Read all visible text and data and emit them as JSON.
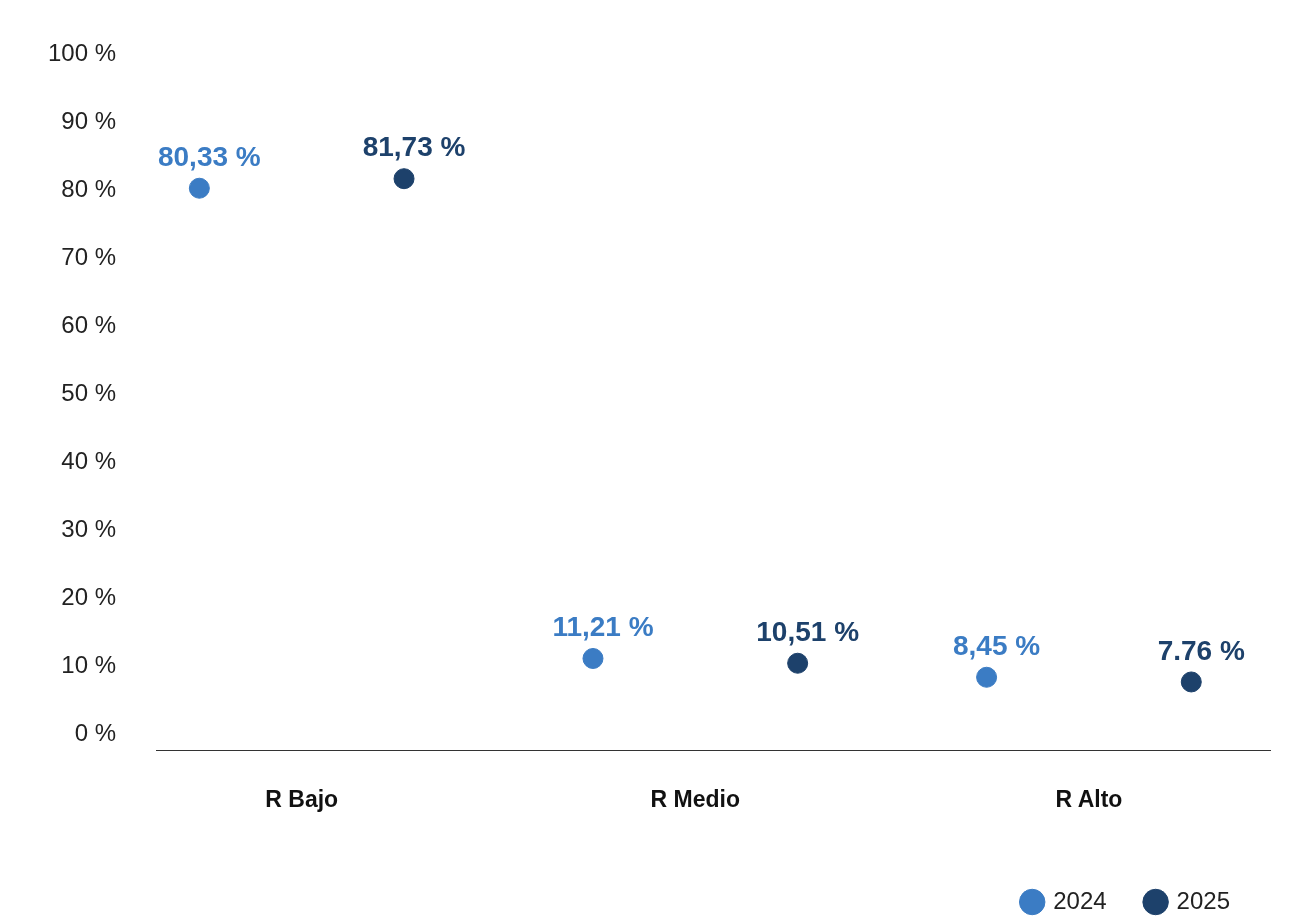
{
  "chart_data": {
    "type": "scatter",
    "categories": [
      "R Bajo",
      "R Medio",
      "R Alto"
    ],
    "series": [
      {
        "name": "2024",
        "color": "#3b7cc4",
        "values": [
          80.33,
          11.21,
          8.45
        ],
        "value_labels": [
          "80,33 %",
          "11,21 %",
          "8,45 %"
        ]
      },
      {
        "name": "2025",
        "color": "#1d416b",
        "values": [
          81.73,
          10.51,
          7.76
        ],
        "value_labels": [
          "81,73 %",
          "10,51 %",
          "7.76 %"
        ]
      }
    ],
    "ylim": [
      -2.3,
      100
    ],
    "yticks": [
      {
        "value": 0,
        "label": "0 %"
      },
      {
        "value": 10,
        "label": "10 %"
      },
      {
        "value": 20,
        "label": "20 %"
      },
      {
        "value": 30,
        "label": "30 %"
      },
      {
        "value": 40,
        "label": "40 %"
      },
      {
        "value": 50,
        "label": "50 %"
      },
      {
        "value": 60,
        "label": "60 %"
      },
      {
        "value": 70,
        "label": "70 %"
      },
      {
        "value": 80,
        "label": "80 %"
      },
      {
        "value": 90,
        "label": "90 %"
      },
      {
        "value": 100,
        "label": "100 %"
      }
    ],
    "grid": false,
    "legend": "bottom right",
    "marker": "circle"
  }
}
